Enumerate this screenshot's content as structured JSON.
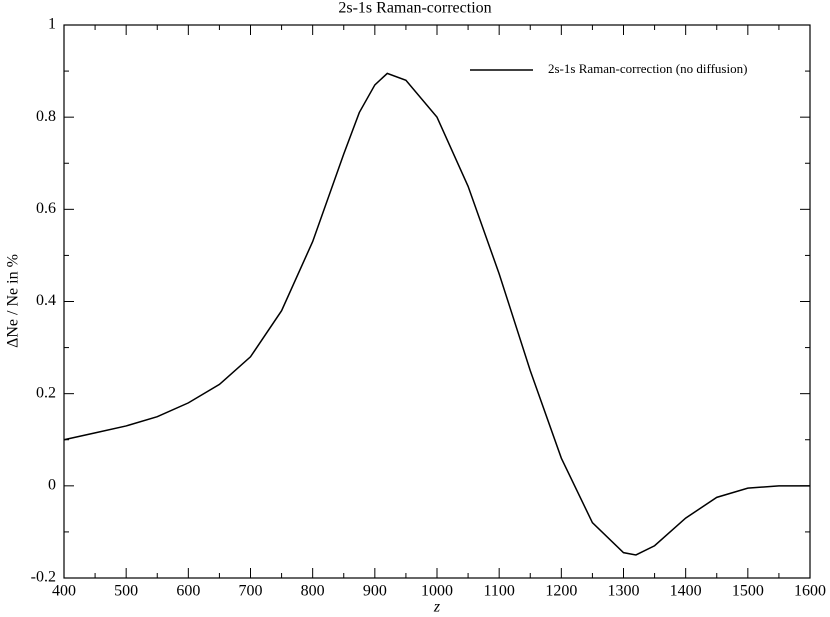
{
  "chart_data": {
    "type": "line",
    "title": "2s-1s Raman-correction",
    "xlabel": "z",
    "ylabel": "ΔNe / Ne in %",
    "x": [
      400,
      450,
      500,
      550,
      600,
      650,
      700,
      750,
      800,
      850,
      875,
      900,
      920,
      950,
      1000,
      1050,
      1100,
      1150,
      1200,
      1250,
      1300,
      1320,
      1350,
      1400,
      1450,
      1500,
      1550,
      1600
    ],
    "series": [
      {
        "name": "2s-1s Raman-correction (no diffusion)",
        "color": "#000000",
        "values": [
          0.1,
          0.115,
          0.13,
          0.15,
          0.18,
          0.22,
          0.28,
          0.38,
          0.53,
          0.72,
          0.81,
          0.87,
          0.895,
          0.88,
          0.8,
          0.65,
          0.46,
          0.25,
          0.06,
          -0.08,
          -0.145,
          -0.15,
          -0.13,
          -0.07,
          -0.025,
          -0.005,
          0,
          0
        ]
      }
    ],
    "xlim": [
      400,
      1600
    ],
    "xticks": [
      400,
      500,
      600,
      700,
      800,
      900,
      1000,
      1100,
      1200,
      1300,
      1400,
      1500,
      1600
    ],
    "ylim": [
      -0.2,
      1
    ],
    "yticks": [
      -0.2,
      0,
      0.2,
      0.4,
      0.6,
      0.8,
      1
    ],
    "legend": "upper-right",
    "grid": false
  }
}
